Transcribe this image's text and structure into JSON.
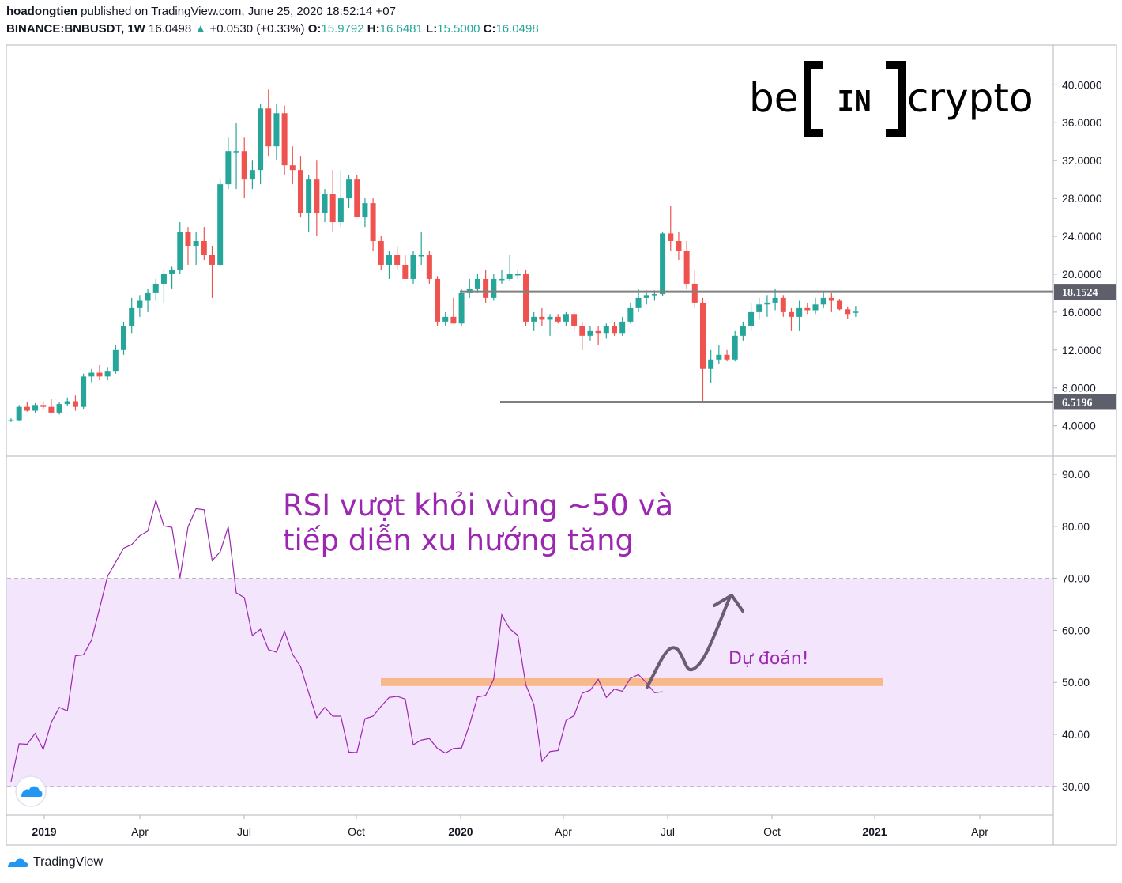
{
  "header": {
    "author": "hoadongtien",
    "published_text": "published on TradingView.com, June 25, 2020 18:52:14 +07",
    "symbol": "BINANCE:BNBUSDT, 1W",
    "last": "16.0498",
    "change_arrow": "▲",
    "change": "+0.0530 (+0.33%)",
    "o_label": "O:",
    "o_value": "15.9792",
    "h_label": "H:",
    "h_value": "16.6481",
    "l_label": "L:",
    "l_value": "15.5000",
    "c_label": "C:",
    "c_value": "16.0498"
  },
  "logo": {
    "text_left": "be",
    "text_mid": "IN",
    "text_right": "crypto"
  },
  "footer": {
    "brand": "TradingView",
    "brand_icon": "tradingview-cloud-icon"
  },
  "colors": {
    "up": "#26a69a",
    "down": "#ef5350",
    "rsi": "#9c27b0",
    "band": "#f3e5fc",
    "support": "#f7b98a",
    "level_line": "#808080"
  },
  "chart_data": [
    {
      "type": "candlestick",
      "x_axis": [
        "2019",
        "Apr",
        "Jul",
        "Oct",
        "2020",
        "Apr",
        "Jul",
        "Oct",
        "2021",
        "Apr"
      ],
      "y_ticks": [
        "40.0000",
        "36.0000",
        "32.0000",
        "28.0000",
        "24.0000",
        "20.0000",
        "16.0000",
        "12.0000",
        "8.0000",
        "4.0000"
      ],
      "ylim": [
        0.8,
        44.2
      ],
      "horizontal_levels": [
        {
          "label": "18.1524",
          "value": 18.1524
        },
        {
          "label": "6.5196",
          "value": 6.5196
        }
      ],
      "candles_ohlc": [
        [
          4.6,
          4.8,
          4.4,
          4.6
        ],
        [
          4.6,
          6.2,
          4.5,
          6.0
        ],
        [
          6.0,
          6.5,
          5.5,
          5.6
        ],
        [
          5.6,
          6.4,
          5.4,
          6.2
        ],
        [
          6.2,
          6.6,
          5.8,
          6.0
        ],
        [
          6.0,
          6.8,
          5.3,
          5.4
        ],
        [
          5.4,
          6.5,
          5.2,
          6.3
        ],
        [
          6.3,
          7.0,
          6.1,
          6.6
        ],
        [
          6.6,
          7.2,
          5.6,
          6.0
        ],
        [
          6.0,
          9.5,
          5.8,
          9.2
        ],
        [
          9.2,
          10.0,
          8.6,
          9.6
        ],
        [
          9.6,
          10.4,
          8.8,
          9.2
        ],
        [
          9.2,
          10.2,
          8.8,
          9.8
        ],
        [
          9.8,
          12.5,
          9.5,
          12.0
        ],
        [
          12.0,
          15.0,
          11.5,
          14.5
        ],
        [
          14.5,
          17.5,
          13.8,
          16.5
        ],
        [
          16.5,
          17.8,
          15.5,
          17.2
        ],
        [
          17.2,
          18.5,
          16.0,
          18.0
        ],
        [
          18.0,
          19.5,
          17.2,
          19.0
        ],
        [
          19.0,
          20.5,
          17.0,
          20.0
        ],
        [
          20.0,
          20.8,
          18.5,
          20.5
        ],
        [
          20.5,
          25.5,
          20.0,
          24.5
        ],
        [
          24.5,
          25.0,
          21.0,
          23.0
        ],
        [
          23.0,
          24.5,
          21.0,
          23.5
        ],
        [
          23.5,
          25.0,
          21.5,
          22.0
        ],
        [
          22.0,
          23.0,
          17.5,
          21.0
        ],
        [
          21.0,
          30.0,
          20.8,
          29.5
        ],
        [
          29.5,
          34.5,
          29.0,
          33.0
        ],
        [
          33.0,
          36.0,
          29.0,
          33.0
        ],
        [
          33.0,
          34.5,
          28.0,
          30.0
        ],
        [
          30.0,
          32.0,
          29.0,
          31.0
        ],
        [
          31.0,
          38.0,
          29.5,
          37.5
        ],
        [
          37.5,
          39.5,
          32.5,
          33.5
        ],
        [
          33.5,
          38.0,
          32.0,
          37.0
        ],
        [
          37.0,
          37.8,
          30.5,
          31.5
        ],
        [
          31.5,
          33.5,
          29.5,
          31.0
        ],
        [
          31.0,
          32.5,
          26.0,
          26.5
        ],
        [
          26.5,
          30.5,
          24.5,
          30.0
        ],
        [
          30.0,
          32.0,
          24.0,
          26.5
        ],
        [
          26.5,
          29.0,
          25.5,
          28.5
        ],
        [
          28.5,
          31.0,
          24.5,
          25.5
        ],
        [
          25.5,
          31.0,
          25.0,
          28.0
        ],
        [
          28.0,
          30.5,
          27.0,
          30.0
        ],
        [
          30.0,
          30.5,
          26.0,
          26.0
        ],
        [
          26.0,
          28.0,
          25.0,
          27.5
        ],
        [
          27.5,
          28.0,
          22.5,
          23.5
        ],
        [
          23.5,
          24.0,
          20.5,
          21.0
        ],
        [
          21.0,
          22.5,
          19.5,
          22.0
        ],
        [
          22.0,
          23.0,
          20.5,
          21.0
        ],
        [
          21.0,
          22.0,
          19.5,
          19.5
        ],
        [
          19.5,
          22.5,
          19.0,
          22.0
        ],
        [
          22.0,
          24.5,
          21.0,
          22.0
        ],
        [
          22.0,
          22.5,
          19.0,
          19.5
        ],
        [
          19.5,
          19.8,
          14.5,
          15.0
        ],
        [
          15.0,
          16.0,
          14.5,
          15.5
        ],
        [
          15.5,
          17.5,
          14.8,
          14.8
        ],
        [
          14.8,
          18.5,
          14.5,
          18.0
        ],
        [
          18.0,
          19.5,
          17.5,
          18.5
        ],
        [
          18.5,
          20.0,
          18.0,
          19.5
        ],
        [
          19.5,
          20.5,
          17.0,
          17.5
        ],
        [
          17.5,
          20.0,
          17.2,
          19.5
        ],
        [
          19.5,
          20.5,
          19.0,
          19.5
        ],
        [
          19.5,
          22.0,
          19.3,
          20.0
        ],
        [
          20.0,
          20.5,
          19.5,
          20.0
        ],
        [
          20.0,
          20.5,
          14.5,
          15.0
        ],
        [
          15.0,
          16.0,
          14.0,
          15.5
        ],
        [
          15.5,
          16.5,
          14.5,
          15.2
        ],
        [
          15.2,
          15.8,
          13.5,
          15.5
        ],
        [
          15.5,
          15.8,
          14.8,
          15.0
        ],
        [
          15.0,
          16.0,
          14.5,
          15.8
        ],
        [
          15.8,
          16.0,
          14.0,
          14.5
        ],
        [
          14.5,
          15.0,
          12.0,
          13.5
        ],
        [
          13.5,
          14.5,
          13.0,
          14.0
        ],
        [
          14.0,
          14.5,
          12.5,
          13.8
        ],
        [
          13.8,
          14.8,
          13.2,
          14.5
        ],
        [
          14.5,
          15.0,
          13.5,
          13.8
        ],
        [
          13.8,
          15.5,
          13.5,
          15.0
        ],
        [
          15.0,
          17.0,
          14.8,
          16.5
        ],
        [
          16.5,
          18.5,
          16.0,
          17.5
        ],
        [
          17.5,
          18.3,
          16.8,
          17.8
        ],
        [
          17.8,
          18.3,
          17.2,
          17.9
        ],
        [
          17.9,
          24.5,
          17.7,
          24.3
        ],
        [
          24.3,
          27.2,
          22.5,
          23.5
        ],
        [
          23.5,
          24.5,
          21.5,
          22.5
        ],
        [
          22.5,
          23.5,
          18.5,
          19.0
        ],
        [
          19.0,
          20.5,
          16.5,
          17.0
        ],
        [
          17.0,
          17.5,
          6.5,
          10.0
        ],
        [
          10.0,
          12.0,
          8.5,
          11.0
        ],
        [
          11.0,
          12.5,
          10.5,
          11.5
        ],
        [
          11.5,
          12.0,
          10.8,
          11.0
        ],
        [
          11.0,
          14.0,
          10.8,
          13.5
        ],
        [
          13.5,
          15.0,
          13.0,
          14.5
        ],
        [
          14.5,
          17.0,
          14.0,
          16.0
        ],
        [
          16.0,
          17.5,
          15.2,
          16.8
        ],
        [
          16.8,
          17.8,
          15.5,
          17.0
        ],
        [
          17.0,
          18.5,
          16.2,
          17.5
        ],
        [
          17.5,
          17.8,
          15.5,
          16.0
        ],
        [
          16.0,
          16.5,
          14.0,
          15.5
        ],
        [
          15.5,
          17.2,
          14.0,
          16.5
        ],
        [
          16.5,
          17.0,
          15.8,
          16.2
        ],
        [
          16.2,
          17.5,
          15.8,
          16.8
        ],
        [
          16.8,
          18.2,
          16.5,
          17.5
        ],
        [
          17.5,
          18.0,
          16.0,
          17.2
        ],
        [
          17.2,
          17.4,
          16.2,
          16.3
        ],
        [
          16.3,
          16.6,
          15.3,
          15.8
        ],
        [
          15.9792,
          16.6481,
          15.5,
          16.0498
        ]
      ]
    },
    {
      "type": "line",
      "y_ticks": [
        "90.00",
        "80.00",
        "70.00",
        "60.00",
        "50.00",
        "40.00",
        "30.00"
      ],
      "ylim": [
        24.5,
        93.5
      ],
      "band": [
        30,
        70
      ],
      "support_zone": [
        49.3,
        50.8
      ],
      "series": [
        {
          "name": "",
          "values": [
            30.9,
            38.2,
            38.1,
            40.2,
            37.1,
            42.3,
            45.2,
            44.5,
            55.1,
            55.3,
            58.1,
            64.2,
            70.4,
            73.1,
            75.8,
            76.5,
            78.2,
            79.1,
            85.0,
            80.1,
            79.8,
            70.1,
            79.9,
            83.4,
            83.2,
            73.4,
            75.1,
            79.9,
            67.2,
            66.3,
            59.0,
            60.2,
            56.3,
            55.8,
            59.8,
            55.4,
            53.0,
            48.0,
            43.2,
            45.2,
            43.5,
            43.5,
            36.6,
            36.5,
            43.0,
            43.5,
            45.4,
            47.1,
            47.3,
            46.8,
            38.0,
            38.9,
            39.2,
            37.3,
            36.4,
            37.3,
            37.4,
            41.9,
            47.2,
            47.5,
            50.6,
            63.0,
            60.3,
            59.0,
            49.5,
            45.7,
            34.8,
            36.7,
            36.9,
            42.7,
            43.6,
            47.9,
            48.5,
            50.6,
            47.1,
            48.7,
            48.3,
            50.8,
            51.5,
            49.9,
            48.0,
            48.2
          ]
        }
      ],
      "annotation_title": "RSI vượt khỏi vùng ~50 và",
      "annotation_title_2": "tiếp diễn xu hướng tăng",
      "forecast_label": "Dự đoán!"
    }
  ]
}
